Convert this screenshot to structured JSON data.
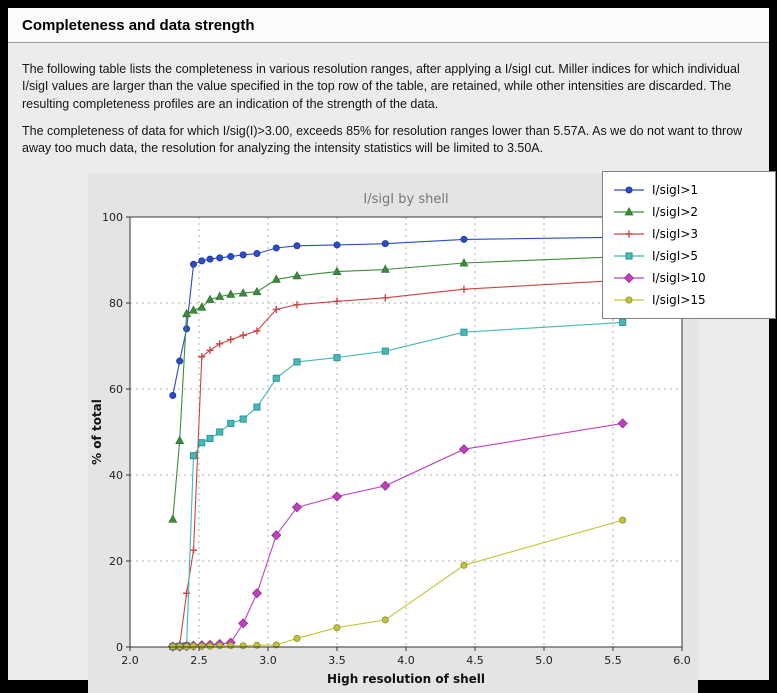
{
  "page": {
    "title": "Completeness and data strength"
  },
  "paragraphs": {
    "p1": "The following table lists the completeness in various resolution ranges, after applying a I/sigI cut. Miller indices for which individual I/sigI values are larger than the value specified in the top row of the table, are retained, while other intensities are discarded. The resulting completeness profiles are an indication of the strength of the data.",
    "p2": "The completeness of data for which I/sig(I)>3.00, exceeds 85% for resolution ranges lower than 5.57A. As we do not want to throw away too much data, the resolution for analyzing the intensity statistics will be limited to 3.50A."
  },
  "chart_data": {
    "type": "line",
    "title": "I/sigI by shell",
    "xlabel": "High resolution of shell",
    "ylabel": "% of total",
    "xlim": [
      2.0,
      6.0
    ],
    "ylim": [
      0,
      100
    ],
    "xticks": [
      2.0,
      2.5,
      3.0,
      3.5,
      4.0,
      4.5,
      5.0,
      5.5,
      6.0
    ],
    "yticks": [
      0,
      20,
      40,
      60,
      80,
      100
    ],
    "grid": "dashed",
    "legend_position": "top-right",
    "colors": {
      "figure_bg": "#e4e4e4",
      "plot_bg": "#ffffff",
      "grid": "#9a9a9a",
      "axis": "#333333",
      "title": "#777777"
    },
    "x": [
      2.31,
      2.36,
      2.41,
      2.46,
      2.52,
      2.58,
      2.65,
      2.73,
      2.82,
      2.92,
      3.06,
      3.21,
      3.5,
      3.85,
      4.42,
      5.57
    ],
    "series": [
      {
        "name": "I/sigI>1",
        "color": "#2b4cc8",
        "edge": "#1b34a0",
        "marker": "circle",
        "values": [
          58.5,
          66.5,
          74.0,
          89.0,
          89.8,
          90.2,
          90.5,
          90.8,
          91.2,
          91.5,
          92.8,
          93.3,
          93.5,
          93.8,
          94.8,
          95.3
        ]
      },
      {
        "name": "I/sigI>2",
        "color": "#3c8c3c",
        "edge": "#2d6e2d",
        "marker": "triangle",
        "values": [
          29.7,
          48.0,
          77.5,
          78.3,
          79.0,
          80.8,
          81.5,
          82.0,
          82.3,
          82.6,
          85.5,
          86.3,
          87.3,
          87.8,
          89.3,
          90.8
        ]
      },
      {
        "name": "I/sigI>3",
        "color": "#cc4444",
        "edge": "#cc4444",
        "marker": "plus",
        "values": [
          0.2,
          0.5,
          12.5,
          22.5,
          67.5,
          69.0,
          70.5,
          71.5,
          72.5,
          73.5,
          78.5,
          79.6,
          80.4,
          81.2,
          83.2,
          85.3
        ]
      },
      {
        "name": "I/sigI>5",
        "color": "#45b8b8",
        "edge": "#2f8f8f",
        "marker": "square",
        "values": [
          0.1,
          0.2,
          0.3,
          44.5,
          47.5,
          48.5,
          50.0,
          52.0,
          53.0,
          55.8,
          62.5,
          66.3,
          67.3,
          68.8,
          73.2,
          75.5
        ]
      },
      {
        "name": "I/sigI>10",
        "color": "#c040c0",
        "edge": "#8c2f8c",
        "marker": "diamond",
        "values": [
          0.1,
          0.1,
          0.2,
          0.3,
          0.4,
          0.5,
          0.7,
          1.0,
          5.5,
          12.5,
          26.0,
          32.5,
          35.0,
          37.5,
          46.0,
          52.0
        ]
      },
      {
        "name": "I/sigI>15",
        "color": "#c3c335",
        "edge": "#8f8f2f",
        "marker": "circle",
        "values": [
          0.1,
          0.1,
          0.1,
          0.2,
          0.2,
          0.2,
          0.3,
          0.3,
          0.3,
          0.4,
          0.5,
          2.0,
          4.5,
          6.3,
          19.0,
          29.5
        ]
      }
    ]
  }
}
